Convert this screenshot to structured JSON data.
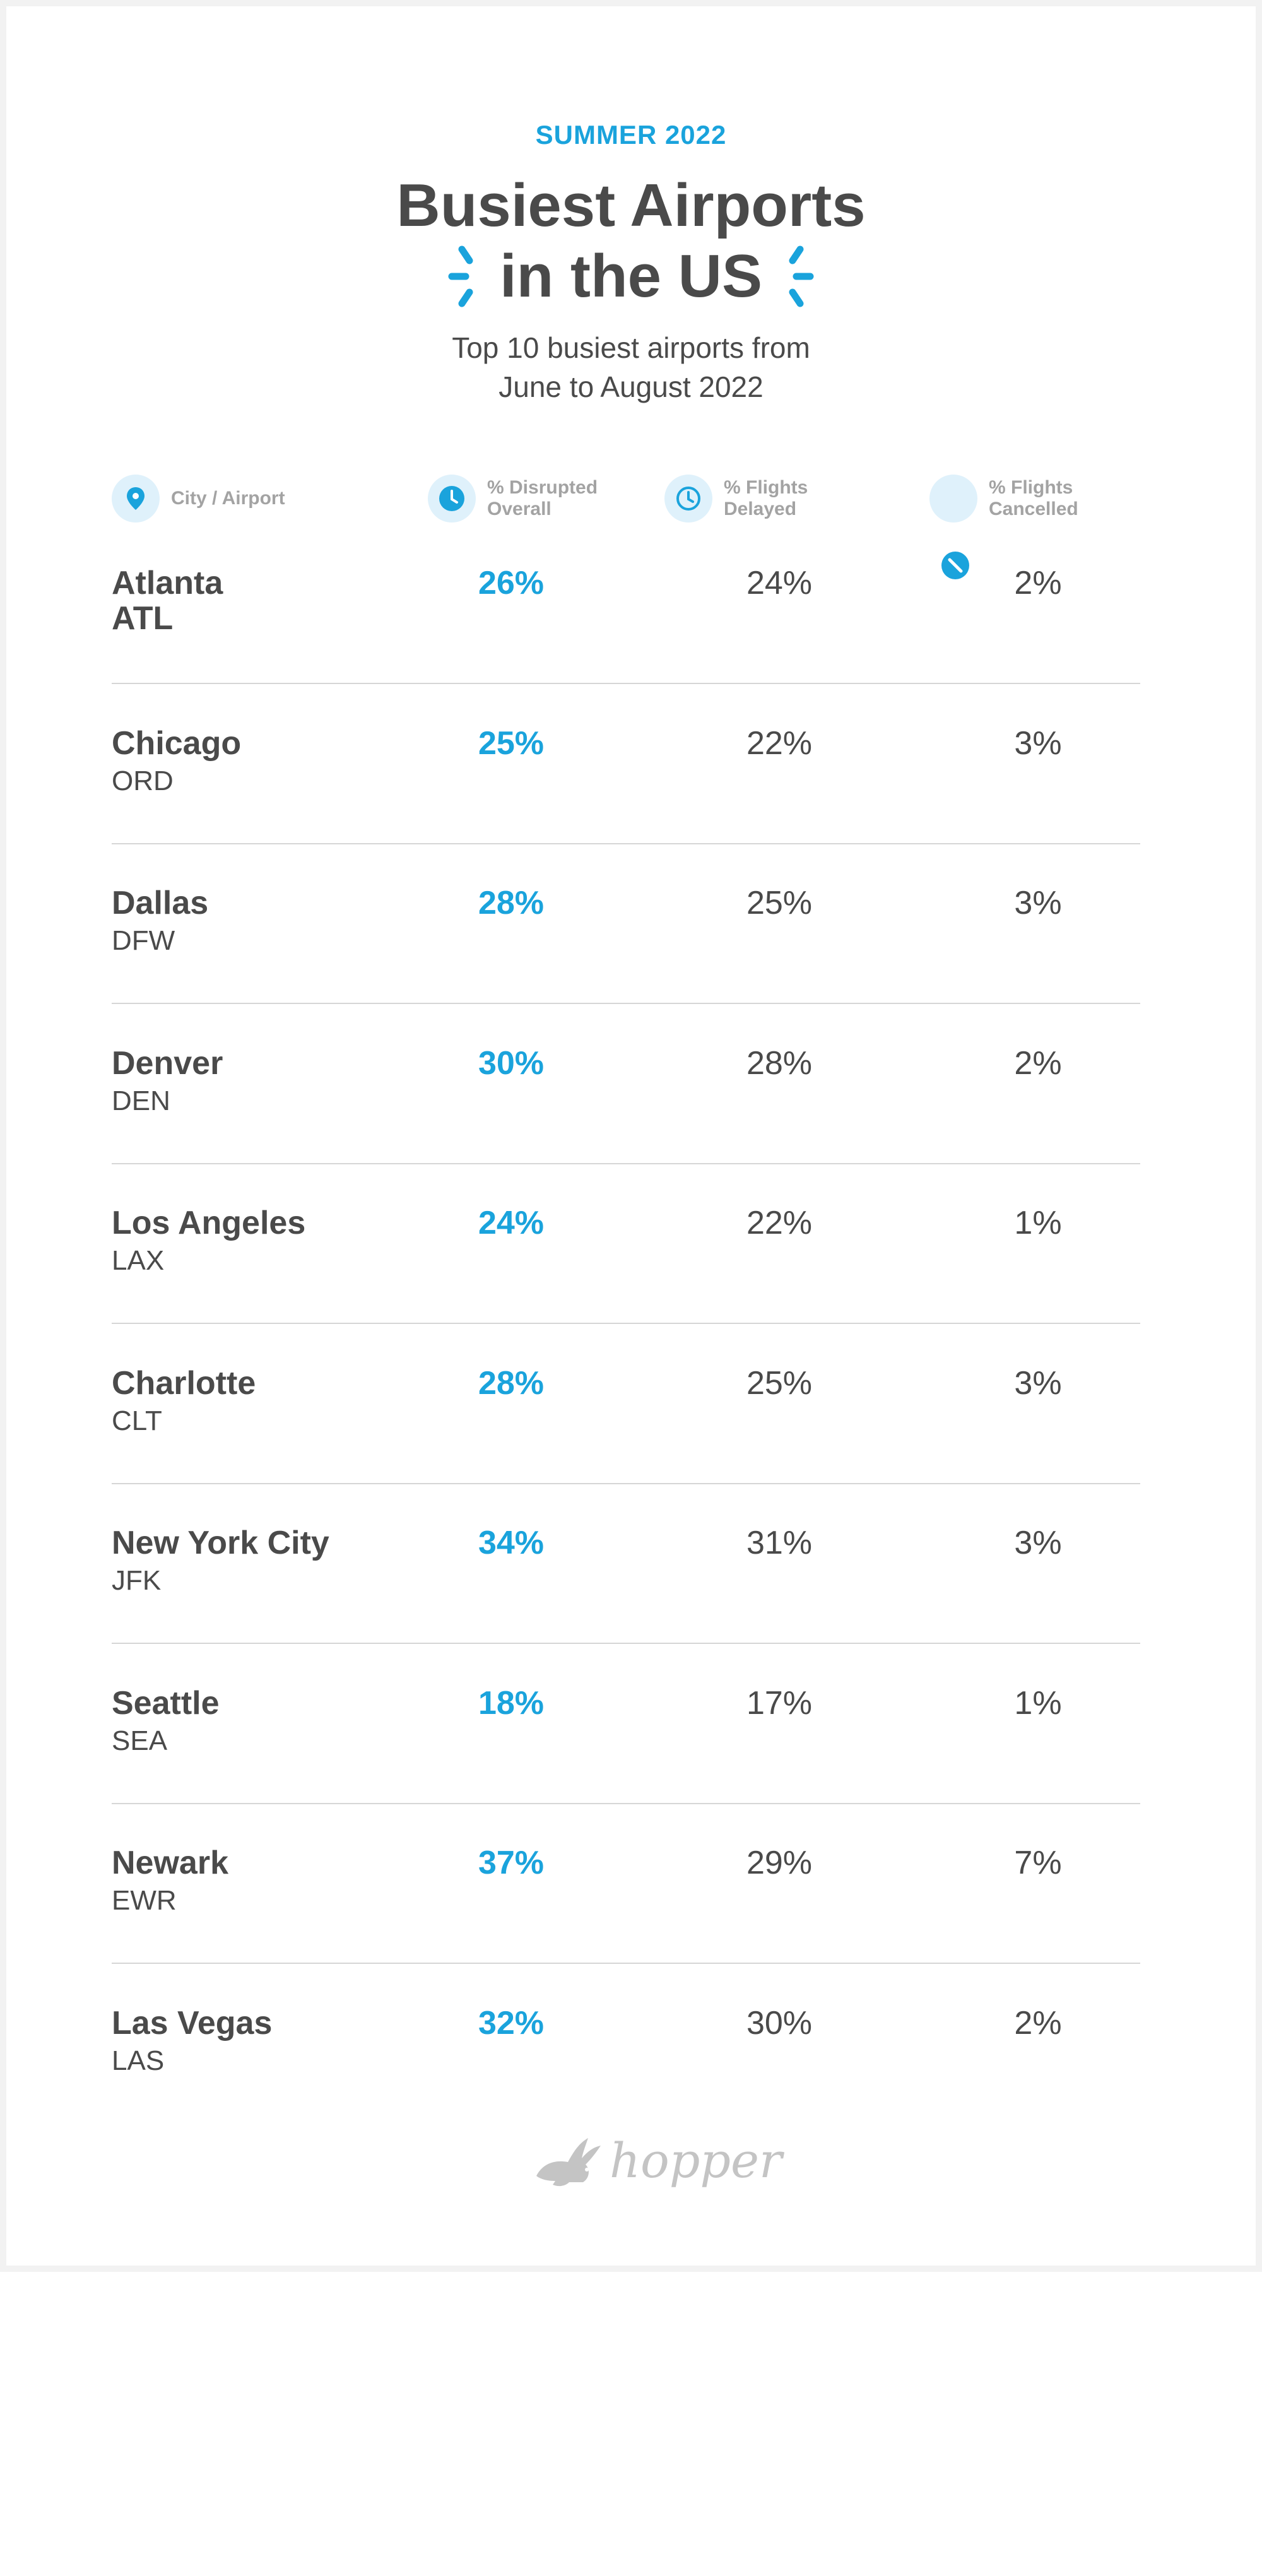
{
  "header": {
    "eyebrow": "SUMMER 2022",
    "title_line1": "Busiest Airports",
    "title_line2": "in the US",
    "subtitle_line1": "Top 10 busiest airports from",
    "subtitle_line2": "June to August 2022"
  },
  "columns": {
    "city": "City / Airport",
    "disrupted": [
      "% Disrupted",
      "Overall"
    ],
    "delayed": [
      "% Flights",
      "Delayed"
    ],
    "cancelled": [
      "% Flights",
      "Cancelled"
    ]
  },
  "icons": {
    "city": "location-pin-icon",
    "disrupted": "clock-filled-icon",
    "delayed": "clock-outline-icon",
    "cancelled": "ban-icon",
    "sparkle": "sparkle-icon",
    "logo": "hopper-bunny-icon"
  },
  "colors": {
    "accent": "#1aa3dc",
    "text": "#4a4a4a",
    "muted": "#a3a3a3",
    "icon_bg": "#dff1fb",
    "divider": "#d6d6d6"
  },
  "chart_data": {
    "type": "table",
    "title": "Busiest Airports in the US",
    "columns": [
      "City / Airport",
      "% Disrupted Overall",
      "% Flights Delayed",
      "% Flights Cancelled"
    ],
    "rows": [
      {
        "city": "Atlanta",
        "code": "ATL",
        "disrupted": "26%",
        "delayed": "24%",
        "cancelled": "2%"
      },
      {
        "city": "Chicago",
        "code": "ORD",
        "disrupted": "25%",
        "delayed": "22%",
        "cancelled": "3%"
      },
      {
        "city": "Dallas",
        "code": "DFW",
        "disrupted": "28%",
        "delayed": "25%",
        "cancelled": "3%"
      },
      {
        "city": "Denver",
        "code": "DEN",
        "disrupted": "30%",
        "delayed": "28%",
        "cancelled": "2%"
      },
      {
        "city": "Los Angeles",
        "code": "LAX",
        "disrupted": "24%",
        "delayed": "22%",
        "cancelled": "1%"
      },
      {
        "city": "Charlotte",
        "code": "CLT",
        "disrupted": "28%",
        "delayed": "25%",
        "cancelled": "3%"
      },
      {
        "city": "New York City",
        "code": "JFK",
        "disrupted": "34%",
        "delayed": "31%",
        "cancelled": "3%"
      },
      {
        "city": "Seattle",
        "code": "SEA",
        "disrupted": "18%",
        "delayed": "17%",
        "cancelled": "1%"
      },
      {
        "city": "Newark",
        "code": "EWR",
        "disrupted": "37%",
        "delayed": "29%",
        "cancelled": "7%"
      },
      {
        "city": "Las Vegas",
        "code": "LAS",
        "disrupted": "32%",
        "delayed": "30%",
        "cancelled": "2%"
      }
    ]
  },
  "footer": {
    "logo_text": "hopper"
  }
}
